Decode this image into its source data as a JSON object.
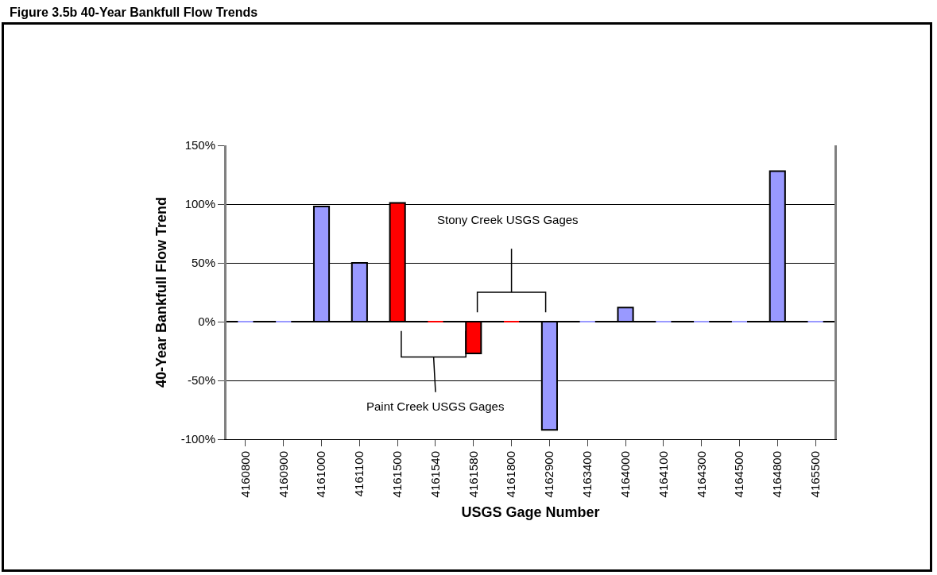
{
  "chart_data": {
    "type": "bar",
    "title": "Figure 3.5b 40-Year Bankfull Flow Trends",
    "xlabel": "USGS Gage Number",
    "ylabel": "40-Year Bankfull Flow Trend",
    "categories": [
      "4160800",
      "4160900",
      "4161000",
      "4161100",
      "4161500",
      "4161540",
      "4161580",
      "4161800",
      "4162900",
      "4163400",
      "4164000",
      "4164100",
      "4164300",
      "4164500",
      "4164800",
      "4165500"
    ],
    "values": [
      0,
      0,
      98,
      50,
      101,
      0,
      -27,
      0,
      -92,
      0,
      12,
      0,
      0,
      0,
      128,
      0
    ],
    "colors": [
      "#9999ff",
      "#9999ff",
      "#9999ff",
      "#9999ff",
      "#ff0000",
      "#ff0000",
      "#ff0000",
      "#ff0000",
      "#9999ff",
      "#9999ff",
      "#9999ff",
      "#9999ff",
      "#9999ff",
      "#9999ff",
      "#9999ff",
      "#9999ff"
    ],
    "ylim": [
      -100,
      150
    ],
    "yticks": [
      {
        "value": -100,
        "label": "-100%"
      },
      {
        "value": -50,
        "label": "-50%"
      },
      {
        "value": 0,
        "label": "0%"
      },
      {
        "value": 50,
        "label": "50%"
      },
      {
        "value": 100,
        "label": "100%"
      },
      {
        "value": 150,
        "label": "150%"
      }
    ],
    "grid": "y",
    "annotations": [
      "Stony Creek USGS Gages",
      "Paint Creek USGS Gages"
    ]
  }
}
